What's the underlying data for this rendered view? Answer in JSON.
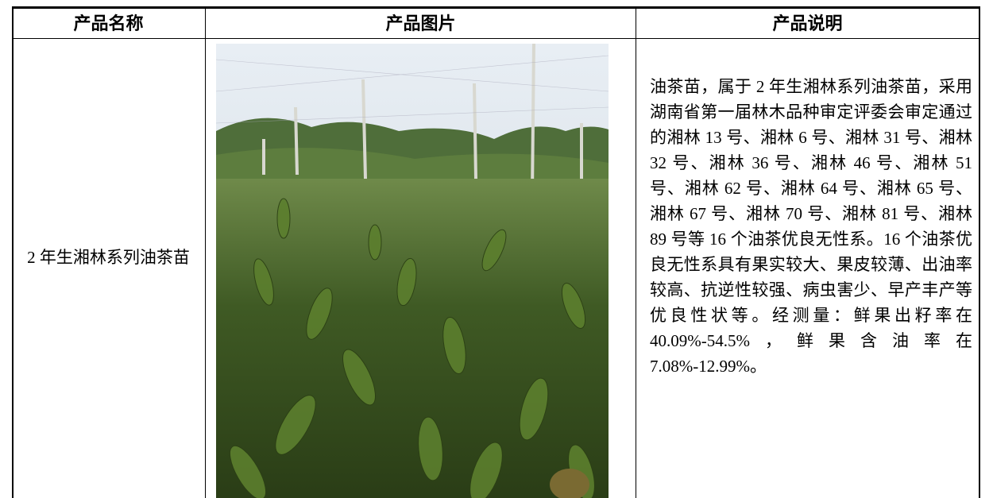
{
  "table": {
    "header": [
      "产品名称",
      "产品图片",
      "产品说明"
    ],
    "rows": [
      [
        "2 年生湘林系列油茶苗",
        "油茶苗，属于 2 年生湘林系列油茶苗，采用湖南省第一届林木品种审定评委会审定通过的湘林 13 号、湘林 6 号、湘林 31 号、湘林 32 号、湘林 36 号、湘林 46 号、湘林 51 号、湘林 62 号、湘林 64 号、湘林 65 号、湘林 67 号、湘林 70 号、湘林 81 号、湘林 89 号等 16 个油茶优良无性系。16 个油茶优良无性系具有果实较大、果皮较薄、出油率较高、抗逆性较强、病虫害少、早产丰产等优良性状等。经测量：鲜果出籽率在 40.09%-54.5%，鲜果含油率在 7.08%-12.99%。"
      ]
    ]
  }
}
